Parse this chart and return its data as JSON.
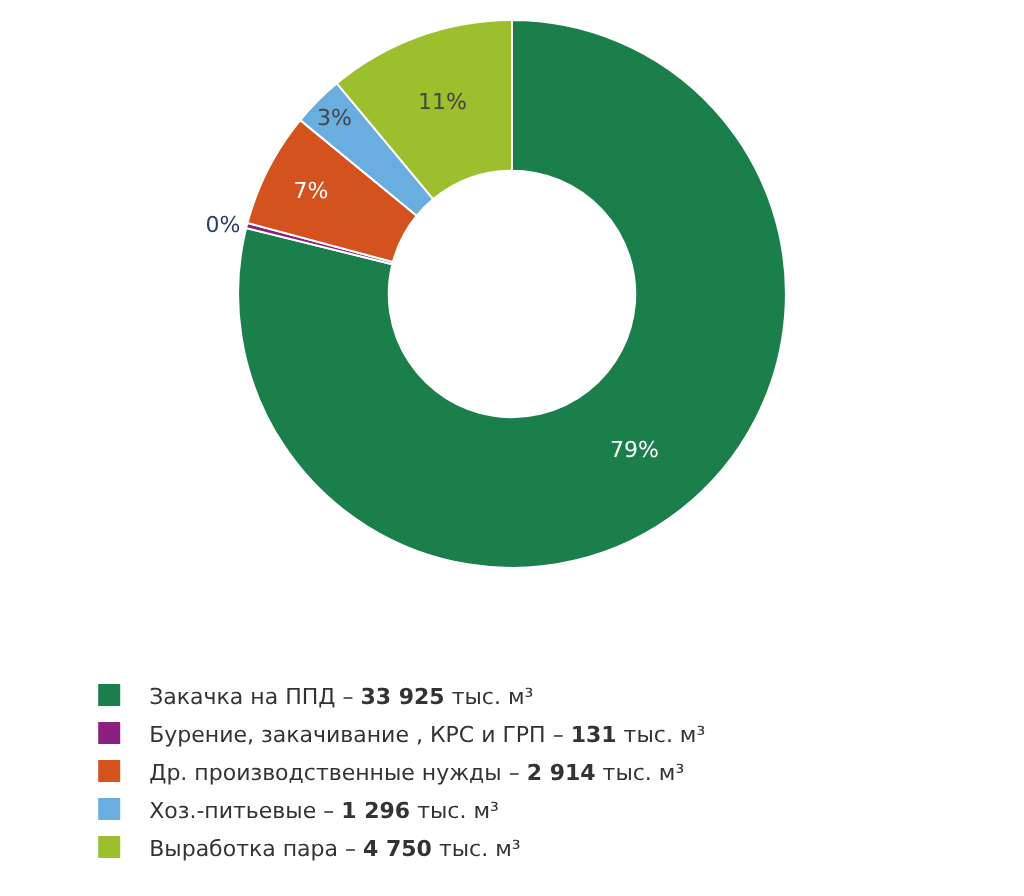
{
  "chart_data": {
    "type": "donut",
    "categories": [
      "Закачка на ППД – 33 925 тыс. м³",
      "Бурение, закачивание , КРС и ГРП – 131 тыс. м³",
      "Др. производственные нужды – 2 914 тыс. м³",
      "Хоз.-питьевые – 1 296 тыс. м³",
      "Выработка пара – 4 750 тыс. м³"
    ],
    "values": [
      78.87,
      0.3,
      6.77,
      3.02,
      11.04
    ],
    "colors": [
      "#1a7f4b",
      "#8b1f82",
      "#d4521e",
      "#6aaee0",
      "#9cbf2e"
    ],
    "value_labels": [
      "79%",
      "0%",
      "7%",
      "3%",
      "11%"
    ],
    "legend": "bottom"
  }
}
